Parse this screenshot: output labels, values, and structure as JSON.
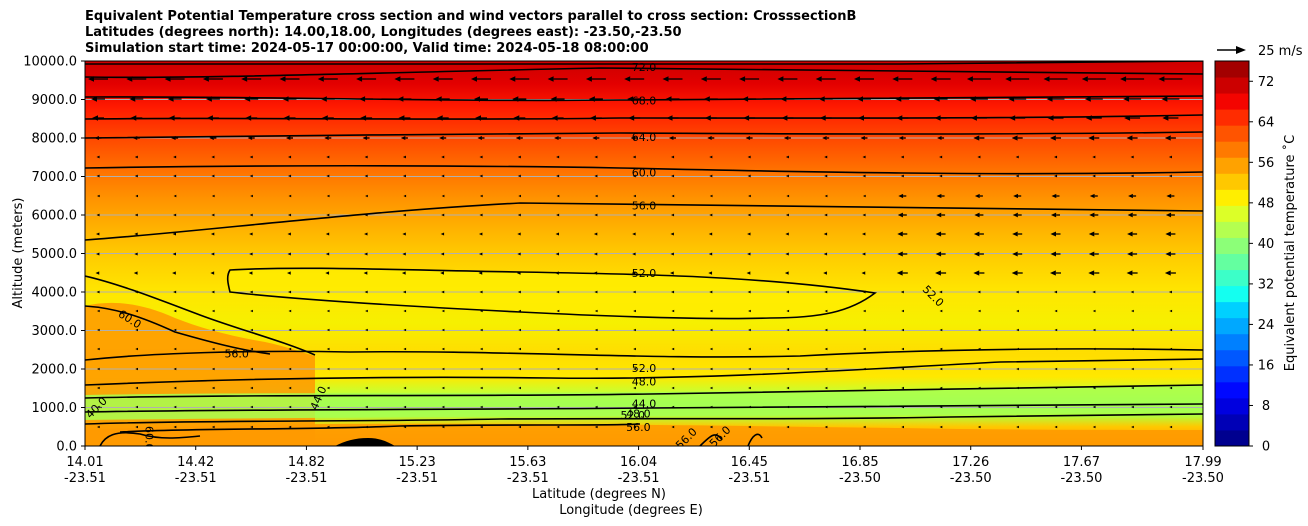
{
  "title": {
    "line1": "Equivalent Potential Temperature cross section and wind vectors parallel to cross section: CrosssectionB",
    "line2": "Latitudes (degrees north): 14.00,18.00, Longitudes (degrees east): -23.50,-23.50",
    "line3": "Simulation start time: 2024-05-17 00:00:00, Valid time: 2024-05-18 08:00:00"
  },
  "chart_data": {
    "type": "heatmap",
    "ylabel": "Altitude (meters)",
    "xlabel_lat": "Latitude (degrees N)",
    "xlabel_lon": "Longitude (degrees E)",
    "ylim": [
      0,
      10000
    ],
    "y_ticks": [
      "0.0",
      "1000.0",
      "2000.0",
      "3000.0",
      "4000.0",
      "5000.0",
      "6000.0",
      "7000.0",
      "8000.0",
      "9000.0",
      "10000.0"
    ],
    "x_ticks": [
      {
        "lat": "14.01",
        "lon": "-23.51"
      },
      {
        "lat": "14.42",
        "lon": "-23.51"
      },
      {
        "lat": "14.82",
        "lon": "-23.51"
      },
      {
        "lat": "15.23",
        "lon": "-23.51"
      },
      {
        "lat": "15.63",
        "lon": "-23.51"
      },
      {
        "lat": "16.04",
        "lon": "-23.51"
      },
      {
        "lat": "16.45",
        "lon": "-23.51"
      },
      {
        "lat": "16.85",
        "lon": "-23.50"
      },
      {
        "lat": "17.26",
        "lon": "-23.50"
      },
      {
        "lat": "17.67",
        "lon": "-23.50"
      },
      {
        "lat": "17.99",
        "lon": "-23.50"
      }
    ],
    "colorbar": {
      "label": "Equivalent potential temperature ˚C",
      "range": [
        0,
        76
      ],
      "ticks": [
        "0",
        "8",
        "16",
        "24",
        "32",
        "40",
        "48",
        "56",
        "64",
        "72"
      ]
    },
    "contour_labels": [
      {
        "text": "72.0",
        "lat": 16.0,
        "alt": 9850
      },
      {
        "text": "68.0",
        "lat": 16.0,
        "alt": 8980
      },
      {
        "text": "64.0",
        "lat": 16.0,
        "alt": 8030
      },
      {
        "text": "60.0",
        "lat": 16.0,
        "alt": 7100
      },
      {
        "text": "56.0",
        "lat": 16.0,
        "alt": 6250
      },
      {
        "text": "52.0",
        "lat": 16.0,
        "alt": 4500
      },
      {
        "text": "52.0",
        "lat": 16.0,
        "alt": 2030
      },
      {
        "text": "48.0",
        "lat": 16.0,
        "alt": 1680
      },
      {
        "text": "44.0",
        "lat": 16.0,
        "alt": 1100
      },
      {
        "text": "56.0",
        "lat": 14.55,
        "alt": 2400
      },
      {
        "text": "60.0",
        "lat": 14.17,
        "alt": 3300
      },
      {
        "text": "44.0",
        "lat": 14.84,
        "alt": 1250
      },
      {
        "text": "40.0",
        "lat": 14.05,
        "alt": 1000
      },
      {
        "text": "60.0",
        "lat": 14.24,
        "alt": 200
      },
      {
        "text": "52.0",
        "lat": 17.03,
        "alt": 3900
      },
      {
        "text": "48.0",
        "lat": 15.98,
        "alt": 850
      },
      {
        "text": "52.0",
        "lat": 15.96,
        "alt": 800
      },
      {
        "text": "56.0",
        "lat": 15.98,
        "alt": 500
      },
      {
        "text": "56.0",
        "lat": 16.15,
        "alt": 200
      },
      {
        "text": "56.0",
        "lat": 16.27,
        "alt": 250
      }
    ],
    "wind_reference": {
      "label": "25 m/s",
      "speed": 25
    }
  },
  "colors": {
    "background": "#ffffff",
    "contour": "#000000",
    "terrain": "#000000"
  }
}
